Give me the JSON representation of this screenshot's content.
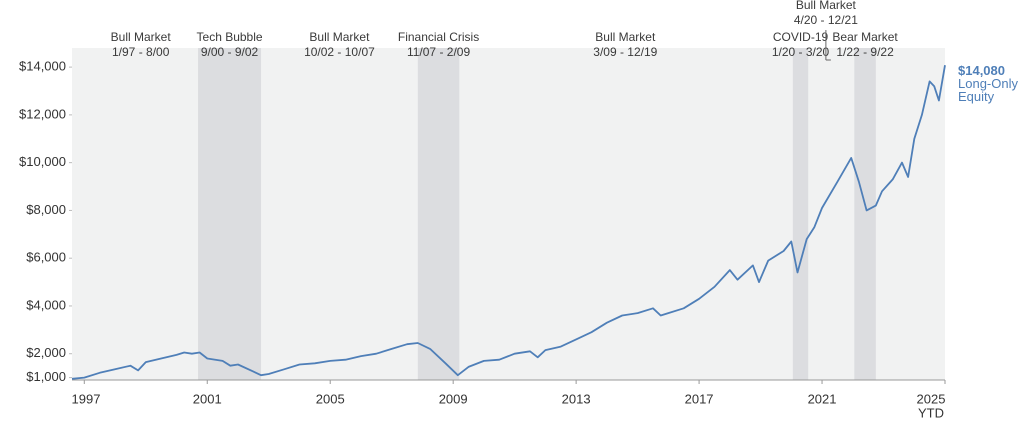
{
  "chart_data": {
    "type": "line",
    "xlim": [
      1996.6,
      2025.0
    ],
    "xticks": [
      1997,
      2001,
      2005,
      2009,
      2013,
      2017,
      2021,
      {
        "value": 2025,
        "label": "2025"
      }
    ],
    "xtick_note": "YTD",
    "ylim": [
      900,
      14800
    ],
    "yticks": [
      {
        "value": 1000,
        "label": "$1,000"
      },
      {
        "value": 2000,
        "label": "$2,000"
      },
      {
        "value": 4000,
        "label": "$4,000"
      },
      {
        "value": 6000,
        "label": "$6,000"
      },
      {
        "value": 8000,
        "label": "$8,000"
      },
      {
        "value": 10000,
        "label": "$10,000"
      },
      {
        "value": 12000,
        "label": "$12,000"
      },
      {
        "value": 14000,
        "label": "$14,000"
      }
    ],
    "periods": [
      {
        "label": "Bull Market",
        "dates": "1/97 - 8/00",
        "start": 1997.0,
        "end": 2000.67,
        "shaded": false
      },
      {
        "label": "Tech Bubble",
        "dates": "9/00 - 9/02",
        "start": 2000.7,
        "end": 2002.75,
        "shaded": true
      },
      {
        "label": "Bull Market",
        "dates": "10/02 - 10/07",
        "start": 2002.75,
        "end": 2007.85,
        "shaded": false
      },
      {
        "label": "Financial Crisis",
        "dates": "11/07 - 2/09",
        "start": 2007.85,
        "end": 2009.2,
        "shaded": true
      },
      {
        "label": "Bull Market",
        "dates": "3/09 - 12/19",
        "start": 2009.2,
        "end": 2020.0,
        "shaded": false
      },
      {
        "label": "COVID-19",
        "dates": "1/20 - 3/20",
        "start": 2020.05,
        "end": 2020.55,
        "shaded": true
      },
      {
        "label": "Bull Market",
        "dates": "4/20 - 12/21",
        "start": 2020.3,
        "end": 2021.95,
        "shaded": false
      },
      {
        "label": "Bear Market",
        "dates": "1/22 - 9/22",
        "start": 2022.05,
        "end": 2022.75,
        "shaded": true
      }
    ],
    "series": [
      {
        "name": "Long-Only Equity",
        "color": "#4f7fb8",
        "x": [
          1996.6,
          1997.0,
          1997.5,
          1998.0,
          1998.5,
          1998.75,
          1999.0,
          1999.5,
          2000.0,
          2000.25,
          2000.5,
          2000.75,
          2001.0,
          2001.5,
          2001.75,
          2002.0,
          2002.5,
          2002.75,
          2003.0,
          2003.5,
          2004.0,
          2004.5,
          2005.0,
          2005.5,
          2006.0,
          2006.5,
          2007.0,
          2007.5,
          2007.85,
          2008.25,
          2008.75,
          2009.15,
          2009.5,
          2010.0,
          2010.5,
          2011.0,
          2011.5,
          2011.75,
          2012.0,
          2012.5,
          2013.0,
          2013.5,
          2014.0,
          2014.5,
          2015.0,
          2015.5,
          2015.75,
          2016.0,
          2016.5,
          2017.0,
          2017.5,
          2018.0,
          2018.25,
          2018.75,
          2018.95,
          2019.25,
          2019.75,
          2020.0,
          2020.2,
          2020.5,
          2020.75,
          2021.0,
          2021.5,
          2021.95,
          2022.2,
          2022.45,
          2022.75,
          2022.95,
          2023.3,
          2023.6,
          2023.8,
          2024.0,
          2024.25,
          2024.5,
          2024.65,
          2024.8,
          2025.0
        ],
        "values": [
          950,
          1000,
          1200,
          1350,
          1500,
          1300,
          1650,
          1800,
          1950,
          2050,
          2000,
          2050,
          1800,
          1700,
          1500,
          1550,
          1250,
          1100,
          1150,
          1350,
          1550,
          1600,
          1700,
          1750,
          1900,
          2000,
          2200,
          2400,
          2450,
          2200,
          1600,
          1100,
          1450,
          1700,
          1750,
          2000,
          2100,
          1850,
          2150,
          2300,
          2600,
          2900,
          3300,
          3600,
          3700,
          3900,
          3600,
          3700,
          3900,
          4300,
          4800,
          5500,
          5100,
          5700,
          5000,
          5900,
          6300,
          6700,
          5400,
          6800,
          7300,
          8100,
          9200,
          10200,
          9200,
          8000,
          8200,
          8800,
          9300,
          10000,
          9400,
          11000,
          12000,
          13400,
          13200,
          12600,
          14080
        ],
        "end_value_label": "$14,080"
      }
    ]
  }
}
